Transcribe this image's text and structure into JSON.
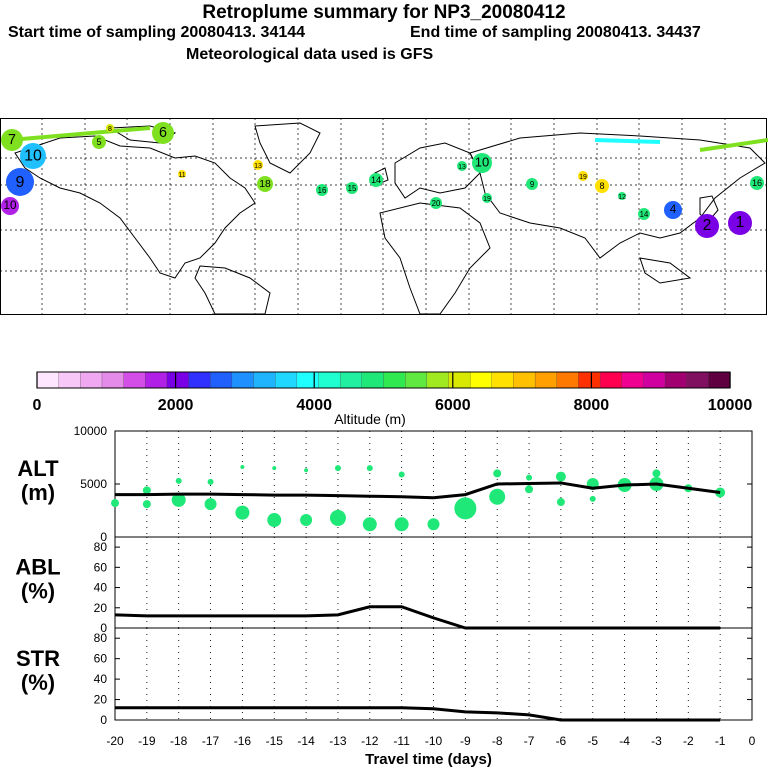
{
  "header": {
    "title": "Retroplume summary for NP3_20080412",
    "start_label": "Start time of sampling 20080413. 34144",
    "end_label": "End time of sampling 20080413. 34437",
    "met_label": "Meteorological data used is GFS"
  },
  "colorbar": {
    "min": 0,
    "max": 10000,
    "ticks": [
      "0",
      "2000",
      "4000",
      "6000",
      "8000",
      "10000"
    ],
    "label": "Altitude (m)",
    "colors": [
      "#ffe6ff",
      "#f7c8f7",
      "#f0a8f0",
      "#e48ae8",
      "#d24ee6",
      "#b020e6",
      "#7a00e6",
      "#3030ff",
      "#2060ff",
      "#1e90ff",
      "#20b4ff",
      "#20d8ff",
      "#20ffff",
      "#20ffd0",
      "#20f0a0",
      "#20e878",
      "#30e850",
      "#60e840",
      "#a0e820",
      "#d8e800",
      "#ffff00",
      "#ffe000",
      "#ffc000",
      "#ffa000",
      "#ff7800",
      "#ff3000",
      "#ff0050",
      "#f00090",
      "#d000a0",
      "#a00070",
      "#801060",
      "#600040"
    ]
  },
  "map": {
    "labels": [
      {
        "t": "7",
        "c": "#7fe020"
      },
      {
        "t": "8",
        "c": "#d8e800"
      },
      {
        "t": "5",
        "c": "#7fe020"
      },
      {
        "t": "6",
        "c": "#7fe020"
      },
      {
        "t": "10",
        "c": "#20c0ff"
      },
      {
        "t": "9",
        "c": "#2060ff"
      },
      {
        "t": "10",
        "c": "#b020e6"
      },
      {
        "t": "11",
        "c": "#ffe000"
      },
      {
        "t": "13",
        "c": "#ffe000"
      },
      {
        "t": "18",
        "c": "#7fe020"
      },
      {
        "t": "16",
        "c": "#20e878"
      },
      {
        "t": "15",
        "c": "#20e878"
      },
      {
        "t": "14",
        "c": "#20e878"
      },
      {
        "t": "13",
        "c": "#20e878"
      },
      {
        "t": "10",
        "c": "#20e878"
      },
      {
        "t": "19",
        "c": "#20e878"
      },
      {
        "t": "20",
        "c": "#20e878"
      },
      {
        "t": "9",
        "c": "#20e878"
      },
      {
        "t": "19",
        "c": "#ffe000"
      },
      {
        "t": "8",
        "c": "#ffe000"
      },
      {
        "t": "12",
        "c": "#20e878"
      },
      {
        "t": "14",
        "c": "#20e878"
      },
      {
        "t": "4",
        "c": "#2060ff"
      },
      {
        "t": "2",
        "c": "#7a00e6"
      },
      {
        "t": "1",
        "c": "#7a00e6"
      },
      {
        "t": "16",
        "c": "#20e878"
      }
    ]
  },
  "chart_data": [
    {
      "type": "line",
      "panel": "ALT",
      "ylabel": "ALT\n(m)",
      "ylim": [
        0,
        10000
      ],
      "yticks": [
        0,
        5000,
        10000
      ],
      "x": [
        -20,
        -19,
        -18,
        -17,
        -16,
        -15,
        -14,
        -13,
        -12,
        -11,
        -10,
        -9,
        -8,
        -7,
        -6,
        -5,
        -4,
        -3,
        -2,
        -1
      ],
      "values": [
        4000,
        4000,
        4050,
        4050,
        4000,
        3950,
        3950,
        3900,
        3850,
        3800,
        3700,
        4000,
        5000,
        5050,
        5100,
        4600,
        4900,
        5000,
        4600,
        4200
      ],
      "dots": [
        {
          "x": -20,
          "y": 3200,
          "s": 4
        },
        {
          "x": -19,
          "y": 4400,
          "s": 4
        },
        {
          "x": -19,
          "y": 3100,
          "s": 4
        },
        {
          "x": -18,
          "y": 5300,
          "s": 3
        },
        {
          "x": -18,
          "y": 3500,
          "s": 7
        },
        {
          "x": -17,
          "y": 5200,
          "s": 3
        },
        {
          "x": -17,
          "y": 3100,
          "s": 6
        },
        {
          "x": -16,
          "y": 6600,
          "s": 2
        },
        {
          "x": -16,
          "y": 2300,
          "s": 7
        },
        {
          "x": -15,
          "y": 6500,
          "s": 2
        },
        {
          "x": -15,
          "y": 1600,
          "s": 7
        },
        {
          "x": -14,
          "y": 6300,
          "s": 2
        },
        {
          "x": -14,
          "y": 1600,
          "s": 6
        },
        {
          "x": -13,
          "y": 6500,
          "s": 3
        },
        {
          "x": -13,
          "y": 1800,
          "s": 8
        },
        {
          "x": -12,
          "y": 6500,
          "s": 3
        },
        {
          "x": -12,
          "y": 1200,
          "s": 7
        },
        {
          "x": -11,
          "y": 5900,
          "s": 3
        },
        {
          "x": -11,
          "y": 1200,
          "s": 7
        },
        {
          "x": -10,
          "y": 1200,
          "s": 6
        },
        {
          "x": -9,
          "y": 2700,
          "s": 11
        },
        {
          "x": -8,
          "y": 6000,
          "s": 4
        },
        {
          "x": -8,
          "y": 3800,
          "s": 8
        },
        {
          "x": -7,
          "y": 5600,
          "s": 3
        },
        {
          "x": -7,
          "y": 4500,
          "s": 4
        },
        {
          "x": -6,
          "y": 5700,
          "s": 5
        },
        {
          "x": -6,
          "y": 3300,
          "s": 4
        },
        {
          "x": -5,
          "y": 5000,
          "s": 6
        },
        {
          "x": -5,
          "y": 3600,
          "s": 3
        },
        {
          "x": -4,
          "y": 4900,
          "s": 7
        },
        {
          "x": -3,
          "y": 5000,
          "s": 7
        },
        {
          "x": -3,
          "y": 6000,
          "s": 4
        },
        {
          "x": -2,
          "y": 4600,
          "s": 4
        },
        {
          "x": -1,
          "y": 4200,
          "s": 5
        }
      ]
    },
    {
      "type": "line",
      "panel": "ABL",
      "ylabel": "ABL\n(%)",
      "ylim": [
        0,
        90
      ],
      "yticks": [
        0,
        20,
        40,
        60,
        80
      ],
      "x": [
        -20,
        -19,
        -18,
        -17,
        -16,
        -15,
        -14,
        -13,
        -12,
        -11,
        -10,
        -9,
        -8,
        -7,
        -6,
        -5,
        -4,
        -3,
        -2,
        -1
      ],
      "values": [
        13,
        12,
        12,
        12,
        12,
        12,
        12,
        13,
        21,
        21,
        10,
        0,
        0,
        0,
        0,
        0,
        0,
        0,
        0,
        0
      ]
    },
    {
      "type": "line",
      "panel": "STR",
      "ylabel": "STR\n(%)",
      "ylim": [
        0,
        90
      ],
      "yticks": [
        0,
        20,
        40,
        60,
        80
      ],
      "x": [
        -20,
        -19,
        -18,
        -17,
        -16,
        -15,
        -14,
        -13,
        -12,
        -11,
        -10,
        -9,
        -8,
        -7,
        -6,
        -5,
        -4,
        -3,
        -2,
        -1
      ],
      "values": [
        12,
        12,
        12,
        12,
        12,
        12,
        12,
        12,
        12,
        12,
        11,
        8,
        7,
        5,
        0,
        0,
        0,
        0,
        0,
        0
      ],
      "xlabel": "Travel time (days)",
      "xticks": [
        "-20",
        "-19",
        "-18",
        "-17",
        "-16",
        "-15",
        "-14",
        "-13",
        "-12",
        "-11",
        "-10",
        "-9",
        "-8",
        "-7",
        "-6",
        "-5",
        "-4",
        "-3",
        "-2",
        "-1",
        "0"
      ]
    }
  ]
}
